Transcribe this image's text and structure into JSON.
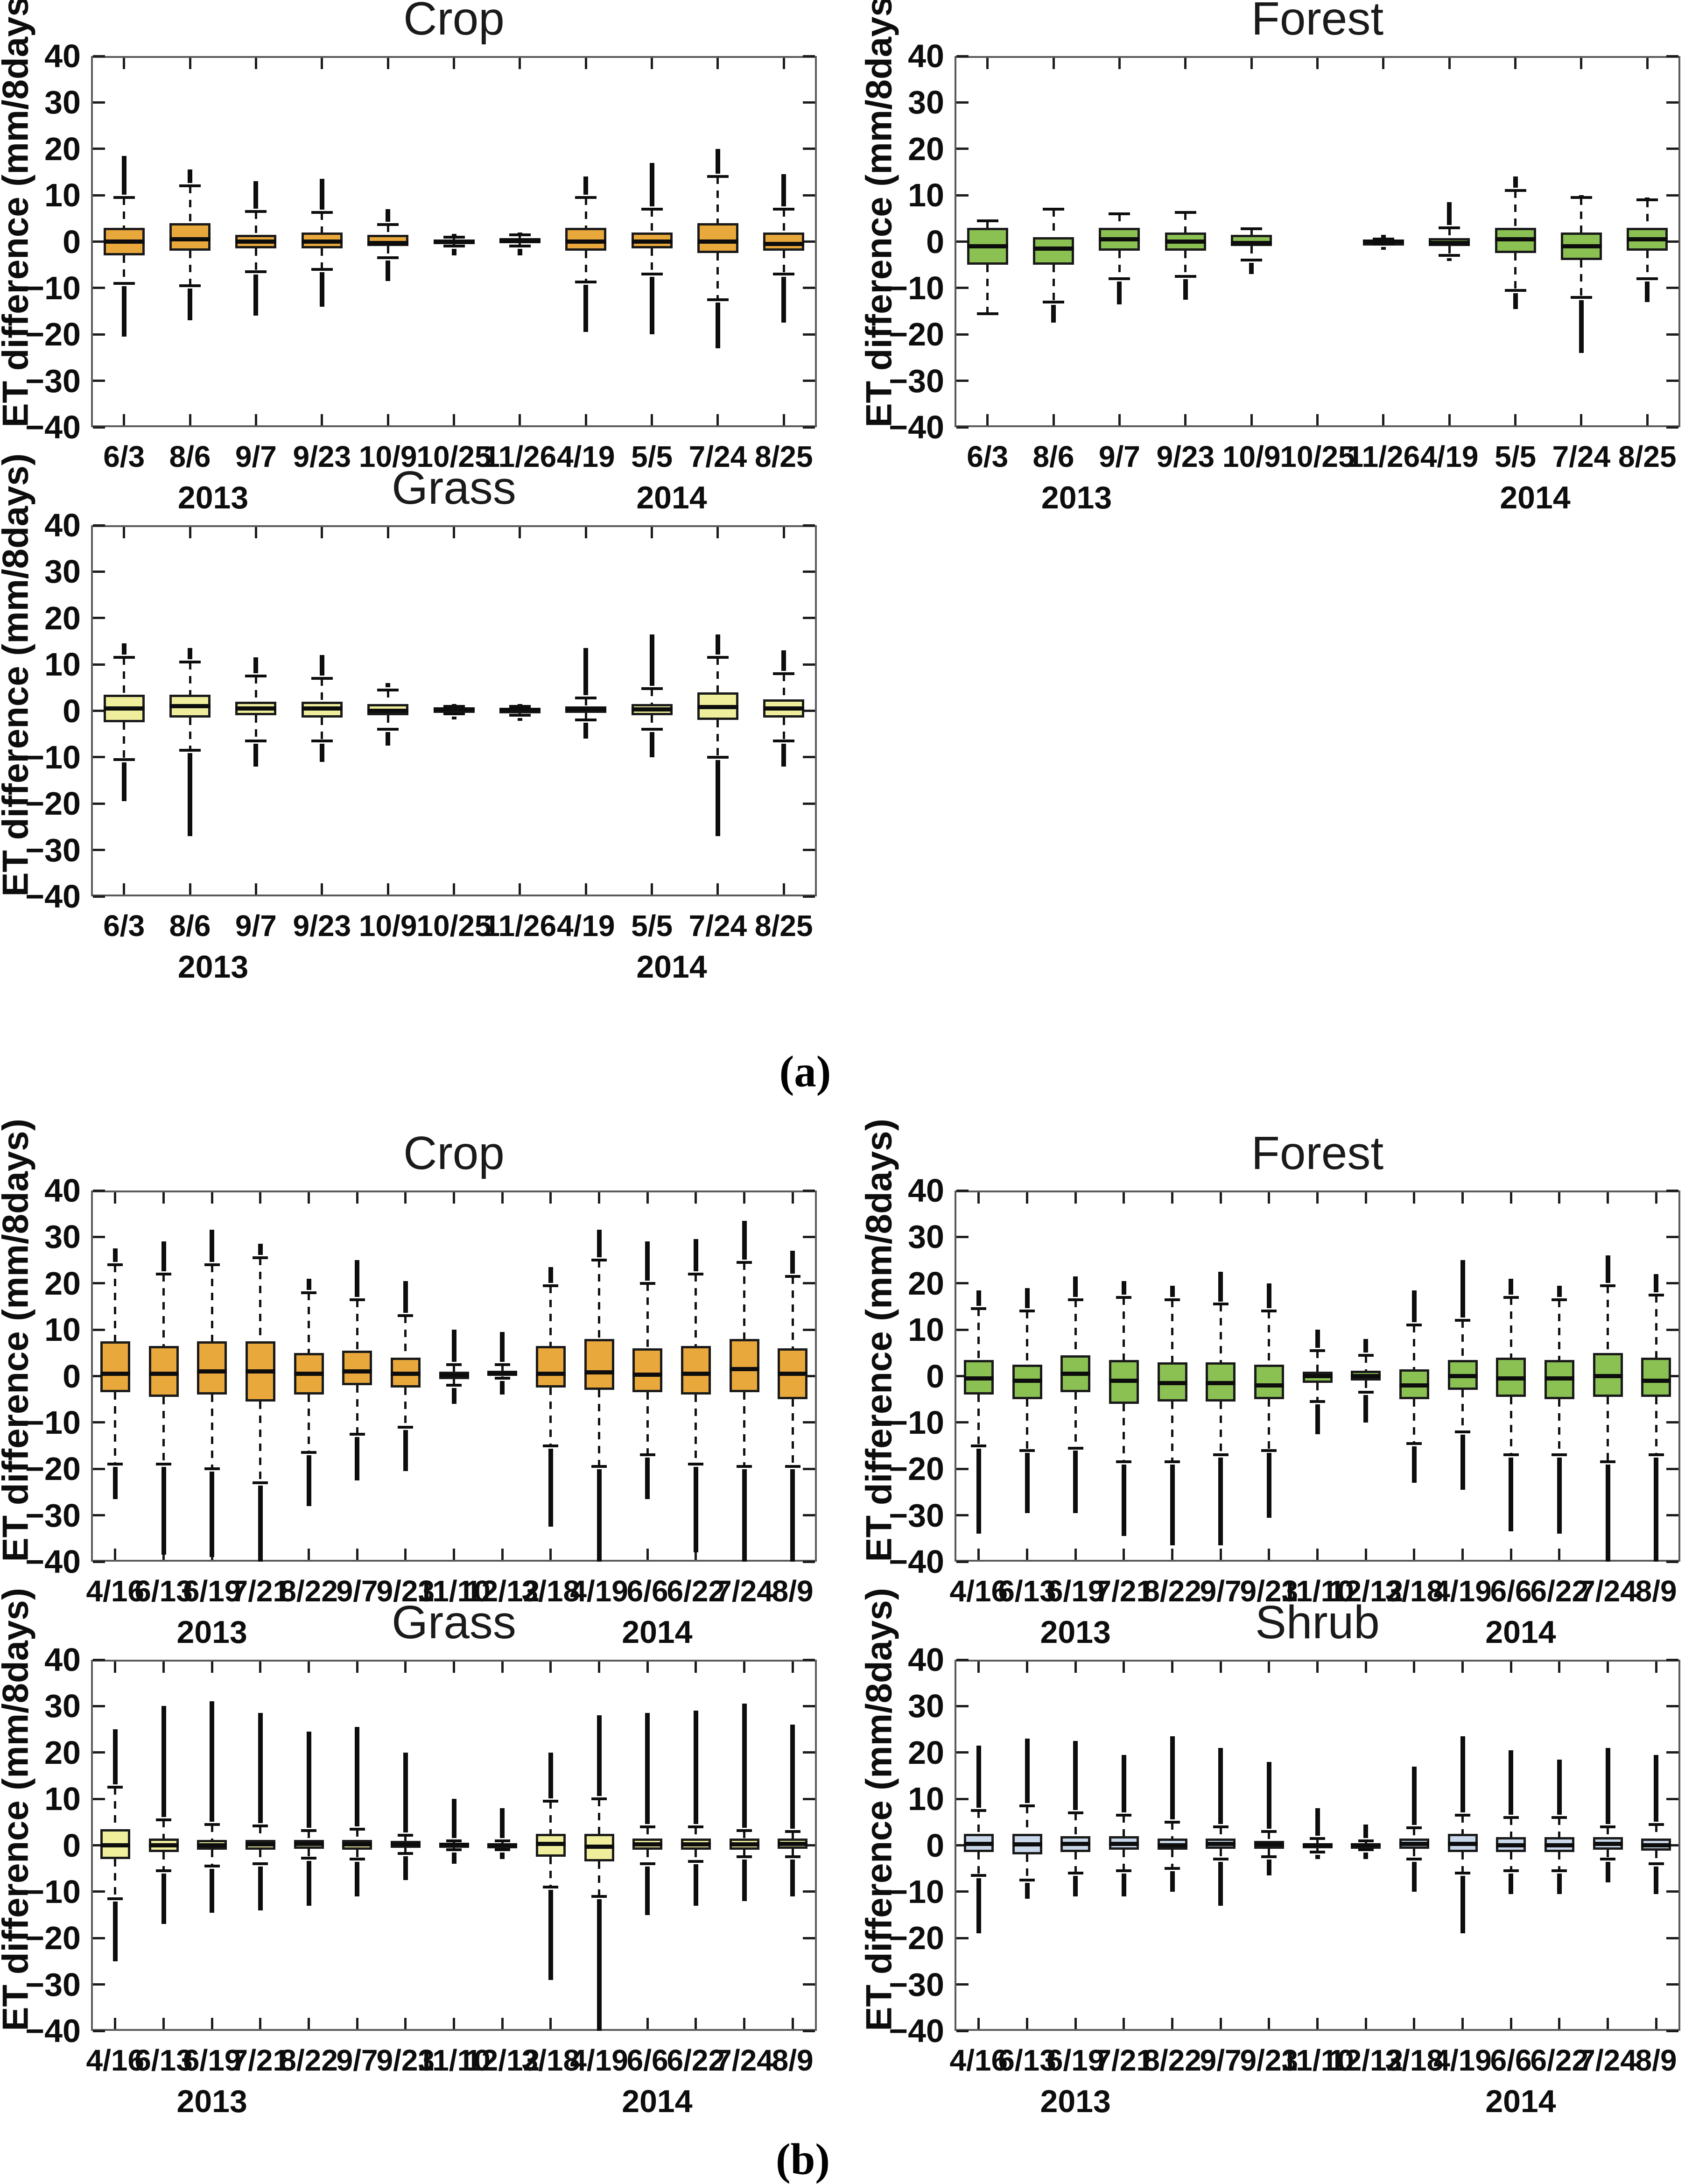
{
  "figure": {
    "captions": {
      "a": "(a)",
      "b": "(b)"
    },
    "ylabel": "ET difference (mm/8days)",
    "yticks": [
      40,
      30,
      20,
      10,
      0,
      -10,
      -20,
      -30,
      -40
    ],
    "colors": {
      "crop": "#E9A83C",
      "forest": "#8BC053",
      "grass": "#EFEE9D",
      "shrub": "#C9D8EA"
    }
  },
  "chart_data": [
    {
      "type": "box",
      "panel": "a",
      "row": 0,
      "col": 0,
      "title": "Crop",
      "box_color": "#E9A83C",
      "ylabel": "ET difference (mm/8days)",
      "ylim": [
        -40,
        40
      ],
      "grid": false,
      "categories": [
        "6/3",
        "8/6",
        "9/7",
        "9/23",
        "10/9",
        "10/25",
        "11/26",
        "4/19",
        "5/5",
        "7/24",
        "8/25"
      ],
      "years": [
        {
          "label": "2013",
          "pos": 1.35
        },
        {
          "label": "2014",
          "pos": 8.3
        }
      ],
      "box_stats_order": [
        "whisker_low",
        "q1",
        "median",
        "q3",
        "whisker_high",
        "outlier_min",
        "outlier_max"
      ],
      "boxes": [
        [
          -9,
          -3,
          0,
          3,
          9.5,
          -20.5,
          18.5
        ],
        [
          -9.5,
          -2,
          0.5,
          4,
          12,
          -17,
          15.5
        ],
        [
          -6.5,
          -1.5,
          0,
          1.5,
          6.5,
          -16,
          13
        ],
        [
          -6,
          -1.5,
          0,
          2,
          6.3,
          -14,
          13.5
        ],
        [
          -3.5,
          -1,
          -0.3,
          1.5,
          3.7,
          -8.5,
          7
        ],
        [
          -1,
          -0.4,
          0,
          0.5,
          1,
          -3,
          1.7
        ],
        [
          -1,
          -0.4,
          0.2,
          0.8,
          1.5,
          -3,
          2
        ],
        [
          -8.7,
          -2,
          0,
          3,
          9.5,
          -19.5,
          14
        ],
        [
          -7,
          -1.5,
          0,
          2,
          7,
          -20,
          17
        ],
        [
          -12.5,
          -2.5,
          0,
          4,
          14,
          -23,
          20
        ],
        [
          -7,
          -2,
          -0.5,
          2,
          7,
          -17.5,
          14.5
        ]
      ]
    },
    {
      "type": "box",
      "panel": "a",
      "row": 0,
      "col": 1,
      "title": "Forest",
      "box_color": "#8BC053",
      "ylabel": "ET difference (mm/8days)",
      "ylim": [
        -40,
        40
      ],
      "grid": false,
      "categories": [
        "6/3",
        "8/6",
        "9/7",
        "9/23",
        "10/9",
        "10/25",
        "11/26",
        "4/19",
        "5/5",
        "7/24",
        "8/25"
      ],
      "years": [
        {
          "label": "2013",
          "pos": 1.35
        },
        {
          "label": "2014",
          "pos": 8.3
        }
      ],
      "boxes": [
        [
          -15.5,
          -5,
          -1,
          3,
          4.5,
          null,
          null
        ],
        [
          -13,
          -5,
          -1.5,
          1,
          7,
          -17.5,
          null
        ],
        [
          -8,
          -2,
          0.5,
          3,
          6,
          -13.5,
          null
        ],
        [
          -7.5,
          -2,
          0,
          2,
          6.3,
          -12.5,
          null
        ],
        [
          -4,
          -1,
          -0.3,
          1.5,
          2.8,
          -7,
          null
        ],
        null,
        [
          -0.6,
          -0.2,
          0,
          0.2,
          0.6,
          -1.5,
          1.5
        ],
        [
          -3,
          -1,
          -0.3,
          0.8,
          3,
          -3.7,
          8.5
        ],
        [
          -10.5,
          -2.5,
          0.5,
          3,
          11,
          -14.5,
          14
        ],
        [
          -12,
          -4,
          -1,
          2,
          9.5,
          -24,
          10
        ],
        [
          -8,
          -2,
          0.5,
          3,
          9,
          -13,
          9.5
        ]
      ]
    },
    {
      "type": "box",
      "panel": "a",
      "row": 1,
      "col": 0,
      "title": "Grass",
      "box_color": "#EFEE9D",
      "ylabel": "ET difference (mm/8days)",
      "ylim": [
        -40,
        40
      ],
      "grid": false,
      "categories": [
        "6/3",
        "8/6",
        "9/7",
        "9/23",
        "10/9",
        "10/25",
        "11/26",
        "4/19",
        "5/5",
        "7/24",
        "8/25"
      ],
      "years": [
        {
          "label": "2013",
          "pos": 1.35
        },
        {
          "label": "2014",
          "pos": 8.3
        }
      ],
      "boxes": [
        [
          -10.5,
          -2.5,
          0.5,
          3.5,
          11.5,
          -19.5,
          14.5
        ],
        [
          -8.5,
          -1.5,
          1,
          3.5,
          10.5,
          -27,
          13.5
        ],
        [
          -6.5,
          -1,
          0.5,
          2,
          7.5,
          -12,
          11.5
        ],
        [
          -6.5,
          -1.5,
          0.5,
          2,
          7,
          -11,
          12
        ],
        [
          -4,
          -1,
          0,
          1.5,
          4.5,
          -7.5,
          6
        ],
        [
          -0.7,
          -0.2,
          0.3,
          0.6,
          1,
          -1.5,
          1.5
        ],
        [
          -1,
          -0.3,
          0.2,
          0.5,
          1,
          -1.7,
          1.5
        ],
        [
          -2,
          -0.5,
          0.3,
          1,
          2.8,
          -6,
          13.5
        ],
        [
          -4,
          -1,
          0.3,
          1.5,
          4.8,
          -10,
          16.5
        ],
        [
          -10,
          -2,
          0.8,
          4,
          11.5,
          -27,
          16.5
        ],
        [
          -6.5,
          -1.5,
          0.5,
          2.5,
          8,
          -12,
          13
        ]
      ]
    },
    {
      "type": "box",
      "panel": "b",
      "row": 0,
      "col": 0,
      "title": "Crop",
      "box_color": "#E9A83C",
      "ylabel": "ET difference (mm/8days)",
      "ylim": [
        -40,
        40
      ],
      "grid": false,
      "categories": [
        "4/16",
        "6/13",
        "6/19",
        "7/21",
        "8/22",
        "9/7",
        "9/23",
        "11/10",
        "12/12",
        "3/18",
        "4/19",
        "6/6",
        "6/22",
        "7/24",
        "8/9"
      ],
      "years": [
        {
          "label": "2013",
          "pos": 2.0
        },
        {
          "label": "2014",
          "pos": 11.2
        }
      ],
      "boxes": [
        [
          -19,
          -3.5,
          0.5,
          7.5,
          24,
          -26.5,
          27.5
        ],
        [
          -19,
          -4.5,
          0.5,
          6.5,
          22,
          -38.5,
          29
        ],
        [
          -20,
          -4,
          1,
          7.5,
          24,
          -39,
          31.5
        ],
        [
          -23,
          -5.5,
          1,
          7.5,
          25.5,
          -40,
          28.5
        ],
        [
          -16.5,
          -4,
          0.5,
          5,
          18,
          -28,
          21
        ],
        [
          -12.5,
          -2,
          1,
          5.5,
          16.5,
          -22.5,
          25
        ],
        [
          -11,
          -2.5,
          0.5,
          4,
          13,
          -20.5,
          20.5
        ],
        [
          -2,
          -0.7,
          0.2,
          1,
          2.5,
          -6,
          10
        ],
        [
          -0.5,
          0,
          0.5,
          1.2,
          2.5,
          -4,
          9.5
        ],
        [
          -15,
          -2.5,
          0.5,
          6.5,
          19.5,
          -32.5,
          23.5
        ],
        [
          -19.5,
          -3,
          0.8,
          8,
          25,
          -40,
          31.5
        ],
        [
          -17,
          -3.5,
          0.3,
          6,
          20,
          -26.5,
          29
        ],
        [
          -19,
          -4,
          0.5,
          6.5,
          22,
          -38,
          29.5
        ],
        [
          -19.5,
          -3.5,
          1.5,
          8,
          24.5,
          -40,
          33.5
        ],
        [
          -19.5,
          -5,
          0.5,
          6,
          21.5,
          -40,
          27
        ]
      ]
    },
    {
      "type": "box",
      "panel": "b",
      "row": 0,
      "col": 1,
      "title": "Forest",
      "box_color": "#8BC053",
      "ylabel": "ET difference (mm/8days)",
      "ylim": [
        -40,
        40
      ],
      "grid": false,
      "categories": [
        "4/16",
        "6/13",
        "6/19",
        "7/21",
        "8/22",
        "9/7",
        "9/23",
        "11/10",
        "12/12",
        "3/18",
        "4/19",
        "6/6",
        "6/22",
        "7/24",
        "8/9"
      ],
      "years": [
        {
          "label": "2013",
          "pos": 2.0
        },
        {
          "label": "2014",
          "pos": 11.2
        }
      ],
      "boxes": [
        [
          -15,
          -4,
          -0.5,
          3.5,
          14.5,
          -34,
          18.5
        ],
        [
          -16,
          -5,
          -1,
          2.5,
          14,
          -29.5,
          19
        ],
        [
          -15.5,
          -3.5,
          0.5,
          4.5,
          16.5,
          -29.5,
          21.5
        ],
        [
          -18.5,
          -6,
          -1,
          3.5,
          17,
          -34.5,
          20.5
        ],
        [
          -18.5,
          -5.5,
          -1.5,
          3,
          16.5,
          -36.5,
          19.5
        ],
        [
          -17,
          -5.5,
          -1.5,
          3,
          15.5,
          -36.5,
          22.5
        ],
        [
          -16,
          -5,
          -2,
          2.5,
          14,
          -30.5,
          20
        ],
        [
          -5.5,
          -1.5,
          0,
          1,
          5.5,
          -12.5,
          10
        ],
        [
          -3.5,
          -1,
          0,
          1.2,
          4.5,
          -10,
          8
        ],
        [
          -14.5,
          -5,
          -2,
          1.5,
          11,
          -23,
          18.5
        ],
        [
          -12,
          -3,
          0,
          3.5,
          12,
          -24.5,
          25
        ],
        [
          -17,
          -4.5,
          -0.5,
          4,
          17,
          -33.5,
          21
        ],
        [
          -17,
          -5,
          -0.5,
          3.5,
          16.5,
          -34,
          19.5
        ],
        [
          -18.5,
          -4.5,
          0,
          5,
          19.5,
          -40,
          26
        ],
        [
          -17,
          -4.5,
          -1,
          4,
          17.5,
          -40,
          22
        ]
      ]
    },
    {
      "type": "box",
      "panel": "b",
      "row": 1,
      "col": 0,
      "title": "Grass",
      "box_color": "#EFEE9D",
      "ylabel": "ET difference (mm/8days)",
      "ylim": [
        -40,
        40
      ],
      "grid": false,
      "categories": [
        "4/16",
        "6/13",
        "6/19",
        "7/21",
        "8/22",
        "9/7",
        "9/23",
        "11/10",
        "12/12",
        "3/18",
        "4/19",
        "6/6",
        "6/22",
        "7/24",
        "8/9"
      ],
      "years": [
        {
          "label": "2013",
          "pos": 2.0
        },
        {
          "label": "2014",
          "pos": 11.2
        }
      ],
      "boxes": [
        [
          -11.5,
          -3,
          0,
          3.5,
          12.5,
          -25,
          25
        ],
        [
          -5.5,
          -1.5,
          0,
          1.5,
          5.5,
          -17,
          30
        ],
        [
          -4.5,
          -1,
          0,
          1.2,
          4.5,
          -14.5,
          31
        ],
        [
          -4,
          -1,
          0.2,
          1.2,
          4.2,
          -14,
          28.5
        ],
        [
          -2.8,
          -0.8,
          0.3,
          1.2,
          3.2,
          -13,
          24.5
        ],
        [
          -3,
          -1,
          0.2,
          1.2,
          3.5,
          -11,
          25.5
        ],
        [
          -1.8,
          -0.6,
          0.2,
          1,
          2.2,
          -7.5,
          20
        ],
        [
          -1,
          -0.3,
          0.1,
          0.5,
          1,
          -4,
          10
        ],
        [
          -1,
          -0.4,
          0,
          0.4,
          1,
          -3,
          8
        ],
        [
          -9,
          -2.5,
          0.3,
          2.5,
          9.5,
          -29,
          20
        ],
        [
          -11,
          -3.5,
          -0.3,
          2.5,
          10,
          -40,
          28
        ],
        [
          -4,
          -1,
          0.2,
          1.5,
          4,
          -15,
          28.5
        ],
        [
          -3.5,
          -1,
          0.2,
          1.5,
          4,
          -13,
          29
        ],
        [
          -2.5,
          -1,
          0.2,
          1.5,
          3.2,
          -12,
          30.5
        ],
        [
          -2.5,
          -0.8,
          0.3,
          1.5,
          3,
          -11,
          26
        ]
      ]
    },
    {
      "type": "box",
      "panel": "b",
      "row": 1,
      "col": 1,
      "title": "Shrub",
      "box_color": "#C9D8EA",
      "ylabel": "ET difference (mm/8days)",
      "ylim": [
        -40,
        40
      ],
      "grid": false,
      "categories": [
        "4/16",
        "6/13",
        "6/19",
        "7/21",
        "8/22",
        "9/7",
        "9/23",
        "11/10",
        "12/12",
        "3/18",
        "4/19",
        "6/6",
        "6/22",
        "7/24",
        "8/9"
      ],
      "years": [
        {
          "label": "2013",
          "pos": 2.0
        },
        {
          "label": "2014",
          "pos": 11.2
        }
      ],
      "boxes": [
        [
          -6.5,
          -1.5,
          0.3,
          2.5,
          7.5,
          -19,
          21.5
        ],
        [
          -7.5,
          -2,
          0.2,
          2.5,
          8.5,
          -11.5,
          23
        ],
        [
          -6,
          -1.5,
          0.3,
          2,
          7,
          -11,
          22.5
        ],
        [
          -5.5,
          -1,
          0.3,
          2,
          6.5,
          -11,
          19.5
        ],
        [
          -5,
          -1,
          0,
          1.5,
          5,
          -10,
          23.5
        ],
        [
          -3,
          -0.8,
          0.3,
          1.5,
          4,
          -13,
          21
        ],
        [
          -2.5,
          -0.8,
          0.2,
          1,
          3,
          -6.5,
          18
        ],
        [
          -1.5,
          -0.4,
          0,
          0.4,
          1.5,
          -3,
          8
        ],
        [
          -1,
          -0.3,
          0,
          0.3,
          1,
          -3,
          4.5
        ],
        [
          -3,
          -0.8,
          0.3,
          1.5,
          3.8,
          -10,
          17
        ],
        [
          -6,
          -1.5,
          0.3,
          2.5,
          6.5,
          -19,
          23.5
        ],
        [
          -5.5,
          -1.5,
          0,
          1.8,
          6,
          -10.5,
          20.5
        ],
        [
          -5.5,
          -1.5,
          0,
          1.8,
          6,
          -10.5,
          18.5
        ],
        [
          -3,
          -1,
          0.3,
          1.8,
          4,
          -8,
          21
        ],
        [
          -4,
          -1.2,
          0,
          1.5,
          4.5,
          -10.5,
          19.5
        ]
      ]
    }
  ]
}
